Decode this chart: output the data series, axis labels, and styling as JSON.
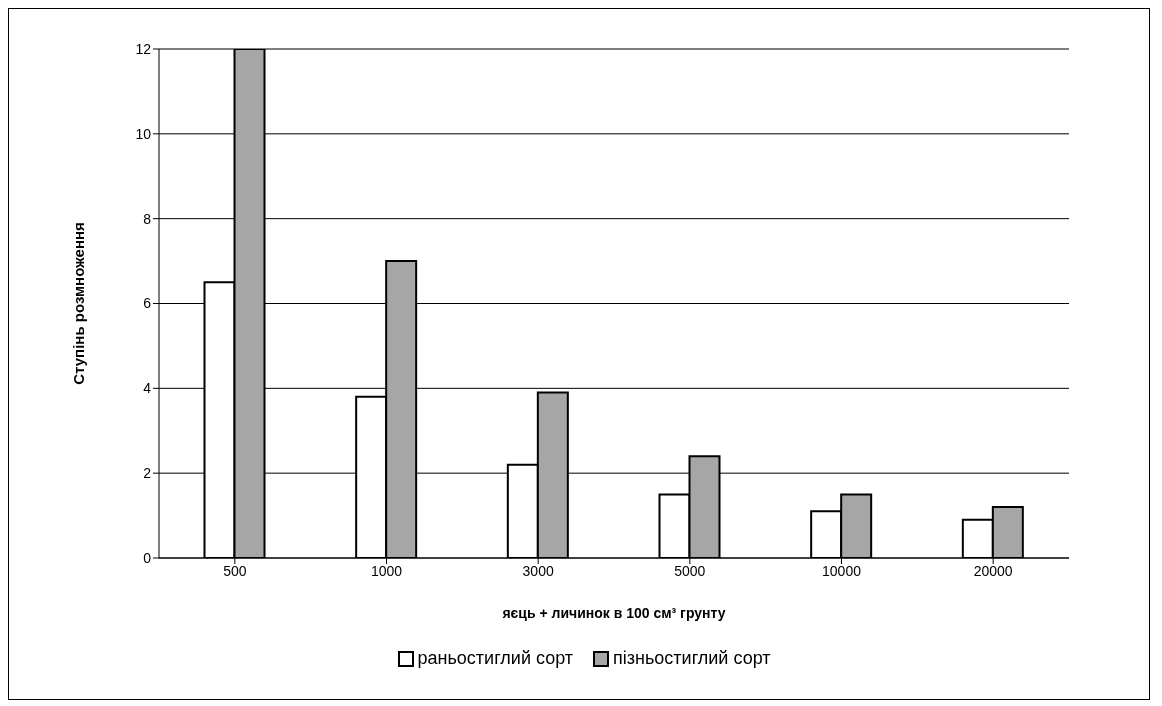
{
  "chart_data": {
    "type": "bar",
    "xlabel": "яєць + личинок в 100 см³ грунту",
    "ylabel": "Ступінь розмноження",
    "categories": [
      "500",
      "1000",
      "3000",
      "5000",
      "10000",
      "20000"
    ],
    "series": [
      {
        "name": "раньостиглий сорт",
        "color": "#ffffff",
        "values": [
          6.5,
          3.8,
          2.2,
          1.5,
          1.1,
          0.9
        ]
      },
      {
        "name": "пізньостиглий сорт",
        "color": "#a6a6a6",
        "values": [
          12,
          7,
          3.9,
          2.4,
          1.5,
          1.2
        ]
      }
    ],
    "ylim": [
      0,
      12
    ],
    "yticks": [
      0,
      2,
      4,
      6,
      8,
      10,
      12
    ],
    "grid": "y",
    "legend": "bottom"
  }
}
